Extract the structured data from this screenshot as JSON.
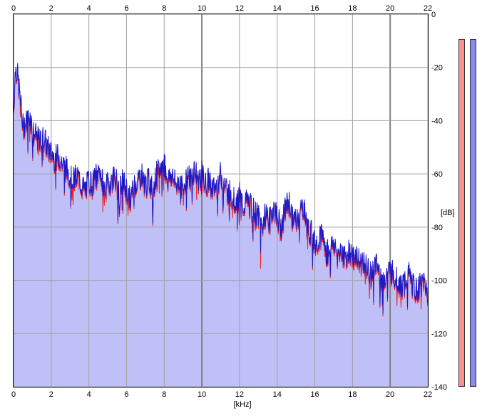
{
  "chart_data": {
    "type": "area",
    "title": "",
    "xlabel": "[kHz]",
    "ylabel": "[dB]",
    "xlim": [
      0,
      22
    ],
    "ylim": [
      -140,
      0
    ],
    "x_ticks": [
      "0",
      "2",
      "4",
      "6",
      "8",
      "10",
      "12",
      "14",
      "16",
      "18",
      "20",
      "22"
    ],
    "y_ticks": [
      "0",
      "-20",
      "-40",
      "-60",
      "-80",
      "-100",
      "-120",
      "-140"
    ],
    "grid": true,
    "colors": {
      "fill": "#c0c0f8",
      "left_channel": "#ee2020",
      "right_channel": "#1a1acc",
      "grid": "#a0a0a0",
      "major_grid": "#808080"
    },
    "series": [
      {
        "x": [
          0.0,
          0.1,
          0.2,
          0.3,
          0.5,
          0.7,
          0.9,
          1.0,
          1.2,
          1.4,
          1.6,
          1.8,
          2.0,
          2.2,
          2.4,
          2.6,
          2.8,
          3.0,
          3.2,
          3.4,
          3.6,
          3.8,
          4.0,
          4.2,
          4.4,
          4.6,
          4.8,
          5.0,
          5.2,
          5.4,
          5.6,
          5.8,
          6.0,
          6.2,
          6.4,
          6.6,
          6.8,
          7.0,
          7.2,
          7.4,
          7.6,
          7.8,
          8.0,
          8.2,
          8.4,
          8.6,
          8.8,
          9.0,
          9.2,
          9.4,
          9.6,
          9.8,
          10.0,
          10.2,
          10.4,
          10.6,
          10.8,
          11.0,
          11.2,
          11.4,
          11.6,
          11.8,
          12.0,
          12.2,
          12.4,
          12.6,
          12.8,
          13.0,
          13.2,
          13.4,
          13.6,
          13.8,
          14.0,
          14.2,
          14.4,
          14.6,
          14.8,
          15.0,
          15.2,
          15.4,
          15.6,
          15.8,
          16.0,
          16.2,
          16.4,
          16.6,
          16.8,
          17.0,
          17.2,
          17.4,
          17.6,
          17.8,
          18.0,
          18.2,
          18.4,
          18.6,
          18.8,
          19.0,
          19.2,
          19.4,
          19.6,
          19.8,
          20.0,
          20.2,
          20.4,
          20.6,
          20.8,
          21.0,
          21.2,
          21.4,
          21.6,
          21.8,
          22.0
        ],
        "values": [
          -36,
          -20,
          -22,
          -28,
          -42,
          -40,
          -38,
          -44,
          -46,
          -48,
          -46,
          -50,
          -52,
          -54,
          -53,
          -56,
          -58,
          -60,
          -62,
          -60,
          -64,
          -66,
          -62,
          -64,
          -60,
          -58,
          -66,
          -64,
          -62,
          -60,
          -68,
          -62,
          -66,
          -70,
          -64,
          -62,
          -60,
          -64,
          -62,
          -66,
          -60,
          -58,
          -56,
          -62,
          -60,
          -64,
          -62,
          -66,
          -60,
          -62,
          -58,
          -62,
          -60,
          -64,
          -62,
          -66,
          -64,
          -60,
          -64,
          -66,
          -68,
          -70,
          -68,
          -72,
          -70,
          -72,
          -74,
          -76,
          -80,
          -74,
          -78,
          -72,
          -76,
          -80,
          -74,
          -70,
          -76,
          -78,
          -74,
          -72,
          -80,
          -82,
          -86,
          -84,
          -82,
          -90,
          -88,
          -86,
          -90,
          -88,
          -92,
          -88,
          -92,
          -90,
          -94,
          -92,
          -96,
          -98,
          -94,
          -96,
          -100,
          -98,
          -96,
          -98,
          -100,
          -102,
          -100,
          -98,
          -102,
          -104,
          -102,
          -100,
          -104
        ]
      }
    ]
  },
  "units": {
    "x": "[kHz]",
    "y": "[dB]"
  }
}
